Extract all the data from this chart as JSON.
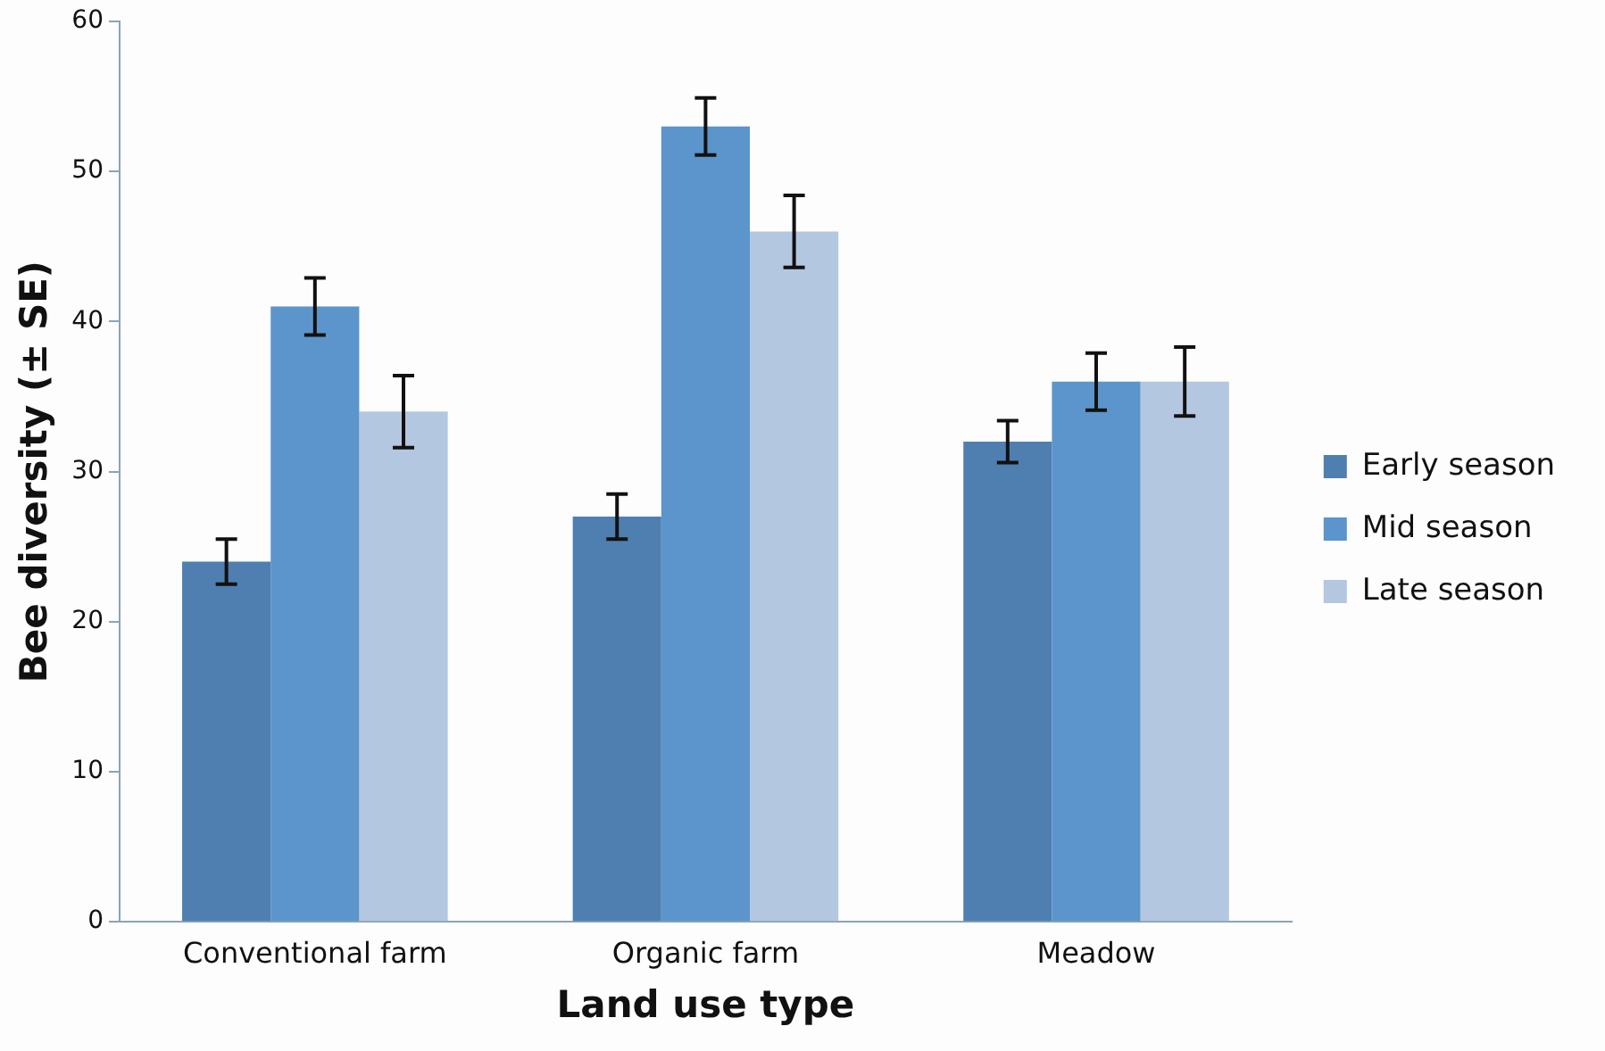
{
  "chart_data": {
    "type": "bar",
    "xlabel": "Land use type",
    "ylabel": "Bee diversity (± SE)",
    "categories": [
      "Conventional farm",
      "Organic farm",
      "Meadow"
    ],
    "series": [
      {
        "name": "Early season",
        "color": "#4f7fb0",
        "values": [
          24,
          27,
          32
        ],
        "errors": [
          1.5,
          1.5,
          1.4
        ]
      },
      {
        "name": "Mid season",
        "color": "#5b95cc",
        "values": [
          41,
          53,
          36
        ],
        "errors": [
          1.9,
          1.9,
          1.9
        ]
      },
      {
        "name": "Late season",
        "color": "#b4c7e0",
        "values": [
          34,
          46,
          36
        ],
        "errors": [
          2.4,
          2.4,
          2.3
        ]
      }
    ],
    "ylim": [
      0,
      60
    ],
    "yticks": [
      0,
      10,
      20,
      30,
      40,
      50,
      60
    ],
    "grid": false,
    "legend": "right"
  }
}
